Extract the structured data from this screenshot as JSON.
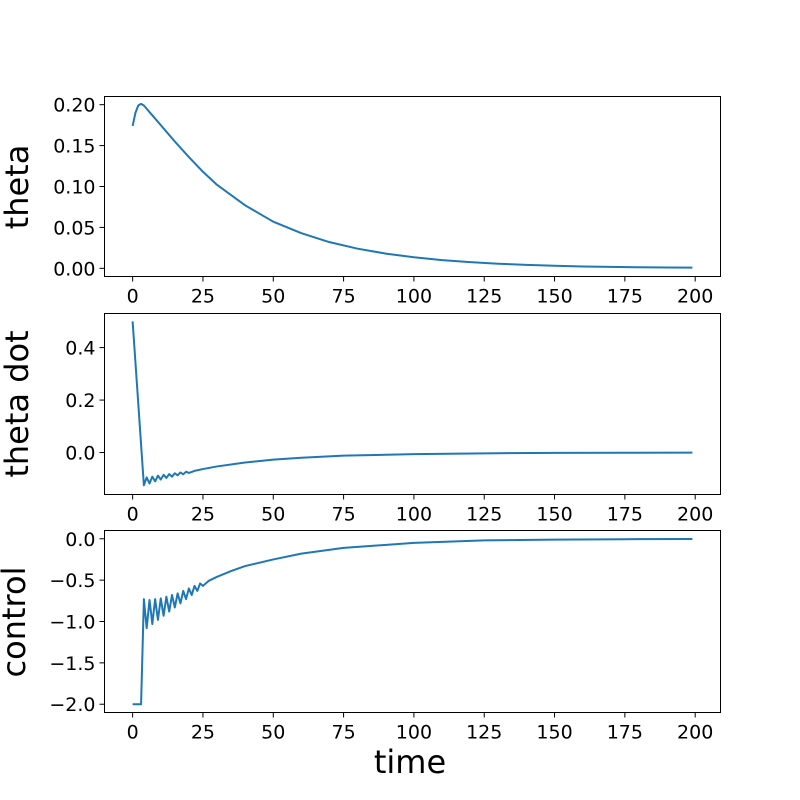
{
  "chart_data": [
    {
      "type": "line",
      "title": "",
      "xlabel": "",
      "ylabel": "theta",
      "xlim": [
        -10,
        209
      ],
      "ylim": [
        -0.01,
        0.21
      ],
      "xticks": [
        0,
        25,
        50,
        75,
        100,
        125,
        150,
        175,
        200
      ],
      "xtick_labels": [
        "0",
        "25",
        "50",
        "75",
        "100",
        "125",
        "150",
        "175",
        "200"
      ],
      "yticks": [
        0.0,
        0.05,
        0.1,
        0.15,
        0.2
      ],
      "ytick_labels": [
        "0.00",
        "0.05",
        "0.10",
        "0.15",
        "0.20"
      ],
      "grid": false,
      "series": [
        {
          "color": "#1f77b4",
          "x": [
            0,
            1,
            2,
            3,
            4,
            5,
            7,
            10,
            15,
            20,
            25,
            30,
            40,
            50,
            60,
            70,
            80,
            90,
            100,
            110,
            120,
            130,
            140,
            150,
            160,
            170,
            180,
            190,
            199
          ],
          "y": [
            0.174,
            0.19,
            0.199,
            0.201,
            0.199,
            0.195,
            0.187,
            0.175,
            0.155,
            0.136,
            0.118,
            0.102,
            0.077,
            0.057,
            0.043,
            0.032,
            0.024,
            0.018,
            0.0135,
            0.01,
            0.0075,
            0.0056,
            0.0042,
            0.0031,
            0.0023,
            0.0017,
            0.0013,
            0.001,
            0.0008
          ]
        }
      ]
    },
    {
      "type": "line",
      "title": "",
      "xlabel": "",
      "ylabel": "theta dot",
      "xlim": [
        -10,
        209
      ],
      "ylim": [
        -0.16,
        0.53
      ],
      "xticks": [
        0,
        25,
        50,
        75,
        100,
        125,
        150,
        175,
        200
      ],
      "xtick_labels": [
        "0",
        "25",
        "50",
        "75",
        "100",
        "125",
        "150",
        "175",
        "200"
      ],
      "yticks": [
        0.0,
        0.2,
        0.4
      ],
      "ytick_labels": [
        "0.0",
        "0.2",
        "0.4"
      ],
      "grid": false,
      "series": [
        {
          "color": "#1f77b4",
          "x": [
            0,
            4,
            5,
            6,
            7,
            8,
            9,
            10,
            11,
            12,
            13,
            14,
            15,
            16,
            17,
            18,
            19,
            20,
            22,
            25,
            30,
            40,
            50,
            60,
            75,
            100,
            125,
            150,
            175,
            199
          ],
          "y": [
            0.5,
            -0.125,
            -0.095,
            -0.118,
            -0.092,
            -0.11,
            -0.088,
            -0.103,
            -0.085,
            -0.097,
            -0.082,
            -0.092,
            -0.079,
            -0.087,
            -0.076,
            -0.083,
            -0.073,
            -0.078,
            -0.07,
            -0.063,
            -0.053,
            -0.038,
            -0.027,
            -0.02,
            -0.012,
            -0.006,
            -0.003,
            -0.0015,
            -0.0008,
            -0.0005
          ]
        }
      ]
    },
    {
      "type": "line",
      "title": "",
      "xlabel": "time",
      "ylabel": "control",
      "xlim": [
        -10,
        209
      ],
      "ylim": [
        -2.1,
        0.1
      ],
      "xticks": [
        0,
        25,
        50,
        75,
        100,
        125,
        150,
        175,
        200
      ],
      "xtick_labels": [
        "0",
        "25",
        "50",
        "75",
        "100",
        "125",
        "150",
        "175",
        "200"
      ],
      "yticks": [
        0.0,
        -0.5,
        -1.0,
        -1.5,
        -2.0
      ],
      "ytick_labels": [
        "0.0",
        "−0.5",
        "−1.0",
        "−1.5",
        "−2.0"
      ],
      "grid": false,
      "series": [
        {
          "color": "#1f77b4",
          "x": [
            0,
            3,
            4,
            5,
            6,
            7,
            8,
            9,
            10,
            11,
            12,
            13,
            14,
            15,
            16,
            17,
            18,
            19,
            20,
            21,
            22,
            23,
            24,
            25,
            27,
            30,
            35,
            40,
            50,
            60,
            75,
            100,
            125,
            150,
            175,
            199
          ],
          "y": [
            -2.0,
            -2.0,
            -0.73,
            -1.08,
            -0.74,
            -1.03,
            -0.73,
            -0.98,
            -0.72,
            -0.93,
            -0.7,
            -0.88,
            -0.68,
            -0.83,
            -0.66,
            -0.78,
            -0.63,
            -0.73,
            -0.6,
            -0.68,
            -0.57,
            -0.63,
            -0.54,
            -0.57,
            -0.51,
            -0.46,
            -0.39,
            -0.33,
            -0.25,
            -0.18,
            -0.11,
            -0.05,
            -0.02,
            -0.01,
            -0.005,
            -0.003
          ]
        }
      ]
    }
  ]
}
